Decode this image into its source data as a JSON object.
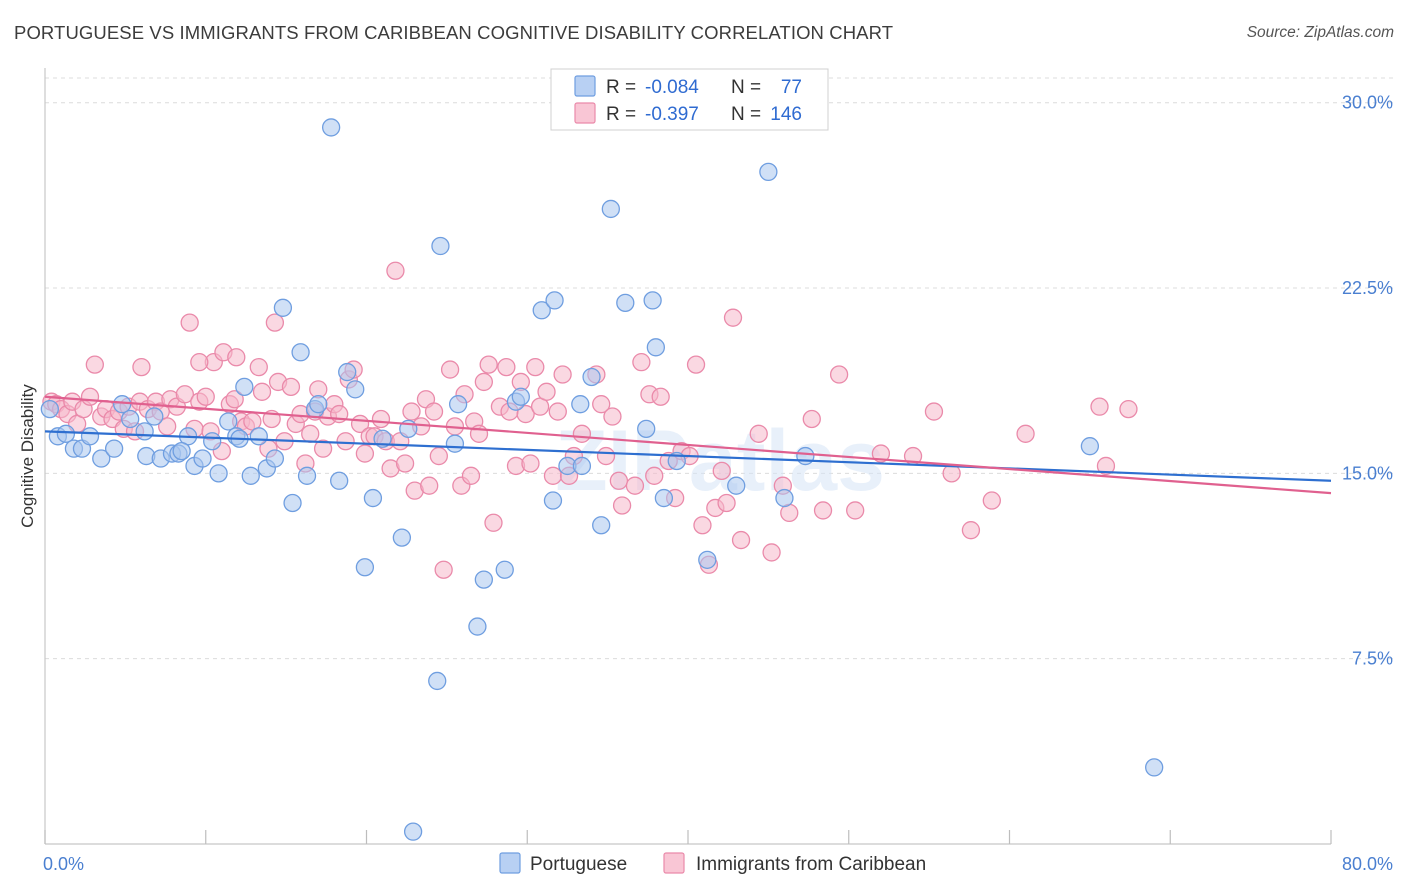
{
  "title": "PORTUGUESE VS IMMIGRANTS FROM CARIBBEAN COGNITIVE DISABILITY CORRELATION CHART",
  "source": "Source: ZipAtlas.com",
  "watermark": "ZIPatlas",
  "colors": {
    "blue_fill": "#a9c6ef",
    "blue_stroke": "#6f9ee0",
    "blue_line": "#2e6fd0",
    "pink_fill": "#f6b8cb",
    "pink_stroke": "#ea8aaa",
    "pink_line": "#e0608f",
    "grid": "#dcdcdc",
    "axis_text": "#4a7fd0"
  },
  "legend": {
    "r_label": "R =",
    "n_label": "N =",
    "rows": [
      {
        "color": "blue",
        "r": "-0.084",
        "n": "77"
      },
      {
        "color": "pink",
        "r": "-0.397",
        "n": "146"
      }
    ]
  },
  "chart_data": {
    "type": "scatter",
    "title": "PORTUGUESE VS IMMIGRANTS FROM CARIBBEAN COGNITIVE DISABILITY CORRELATION CHART",
    "xlabel": "",
    "ylabel": "Cognitive Disability",
    "xlim": [
      0,
      80
    ],
    "ylim": [
      0,
      31
    ],
    "x_tick_labels": [
      "0.0%",
      "80.0%"
    ],
    "y_ticks": [
      7.5,
      15.0,
      22.5,
      30.0
    ],
    "y_tick_labels": [
      "7.5%",
      "15.0%",
      "22.5%",
      "30.0%"
    ],
    "grid": true,
    "legend_position": "top-center",
    "series": [
      {
        "name": "Portuguese",
        "color": "blue",
        "trend": [
          [
            0,
            16.7
          ],
          [
            80,
            14.7
          ]
        ],
        "points": [
          [
            0.3,
            17.6
          ],
          [
            0.8,
            16.5
          ],
          [
            1.3,
            16.6
          ],
          [
            1.8,
            16.0
          ],
          [
            2.3,
            16.0
          ],
          [
            2.8,
            16.5
          ],
          [
            3.5,
            15.6
          ],
          [
            4.3,
            16.0
          ],
          [
            4.8,
            17.8
          ],
          [
            5.3,
            17.2
          ],
          [
            6.2,
            16.7
          ],
          [
            6.3,
            15.7
          ],
          [
            6.8,
            17.3
          ],
          [
            7.2,
            15.6
          ],
          [
            7.9,
            15.8
          ],
          [
            8.3,
            15.8
          ],
          [
            8.9,
            16.5
          ],
          [
            9.3,
            15.3
          ],
          [
            9.8,
            15.6
          ],
          [
            10.4,
            16.3
          ],
          [
            10.8,
            15.0
          ],
          [
            11.4,
            17.1
          ],
          [
            11.9,
            16.5
          ],
          [
            12.4,
            18.5
          ],
          [
            12.8,
            14.9
          ],
          [
            13.3,
            16.5
          ],
          [
            13.8,
            15.2
          ],
          [
            14.3,
            15.6
          ],
          [
            14.8,
            21.7
          ],
          [
            15.4,
            13.8
          ],
          [
            15.9,
            19.9
          ],
          [
            16.3,
            14.9
          ],
          [
            16.8,
            17.6
          ],
          [
            17.8,
            29.0
          ],
          [
            18.3,
            14.7
          ],
          [
            18.8,
            19.1
          ],
          [
            19.3,
            18.4
          ],
          [
            19.9,
            11.2
          ],
          [
            20.4,
            14.0
          ],
          [
            21.0,
            16.4
          ],
          [
            22.2,
            12.4
          ],
          [
            22.6,
            16.8
          ],
          [
            22.9,
            0.5
          ],
          [
            24.4,
            6.6
          ],
          [
            24.6,
            24.2
          ],
          [
            25.5,
            16.2
          ],
          [
            25.7,
            17.8
          ],
          [
            26.9,
            8.8
          ],
          [
            27.3,
            10.7
          ],
          [
            28.6,
            11.1
          ],
          [
            29.3,
            17.9
          ],
          [
            29.6,
            18.1
          ],
          [
            30.9,
            21.6
          ],
          [
            31.6,
            13.9
          ],
          [
            31.7,
            22.0
          ],
          [
            32.5,
            15.3
          ],
          [
            33.3,
            17.8
          ],
          [
            33.4,
            15.3
          ],
          [
            34.0,
            18.9
          ],
          [
            34.6,
            12.9
          ],
          [
            35.2,
            25.7
          ],
          [
            36.1,
            21.9
          ],
          [
            37.4,
            16.8
          ],
          [
            37.8,
            22.0
          ],
          [
            38.0,
            20.1
          ],
          [
            38.5,
            14.0
          ],
          [
            39.3,
            15.5
          ],
          [
            41.2,
            11.5
          ],
          [
            43.0,
            14.5
          ],
          [
            45.0,
            27.2
          ],
          [
            46.0,
            14.0
          ],
          [
            47.3,
            15.7
          ],
          [
            65.0,
            16.1
          ],
          [
            69.0,
            3.1
          ],
          [
            8.5,
            15.9
          ],
          [
            17.0,
            17.8
          ],
          [
            12.1,
            16.4
          ]
        ]
      },
      {
        "name": "Immigrants from Caribbean",
        "color": "pink",
        "trend": [
          [
            0,
            18.1
          ],
          [
            80,
            14.2
          ]
        ],
        "points": [
          [
            0.4,
            17.9
          ],
          [
            0.7,
            17.8
          ],
          [
            1.0,
            17.6
          ],
          [
            1.4,
            17.4
          ],
          [
            1.7,
            17.9
          ],
          [
            2.0,
            17.0
          ],
          [
            2.4,
            17.6
          ],
          [
            2.8,
            18.1
          ],
          [
            3.1,
            19.4
          ],
          [
            3.5,
            17.3
          ],
          [
            3.8,
            17.6
          ],
          [
            4.2,
            17.2
          ],
          [
            4.6,
            17.5
          ],
          [
            4.9,
            16.8
          ],
          [
            5.2,
            17.7
          ],
          [
            5.6,
            16.7
          ],
          [
            5.9,
            17.9
          ],
          [
            6.0,
            19.3
          ],
          [
            6.4,
            17.6
          ],
          [
            6.9,
            17.9
          ],
          [
            7.2,
            17.5
          ],
          [
            7.6,
            16.9
          ],
          [
            7.8,
            18.0
          ],
          [
            8.2,
            17.7
          ],
          [
            8.7,
            18.2
          ],
          [
            9.0,
            21.1
          ],
          [
            9.3,
            16.8
          ],
          [
            9.6,
            17.9
          ],
          [
            10.0,
            18.1
          ],
          [
            10.3,
            16.7
          ],
          [
            10.5,
            19.5
          ],
          [
            11.0,
            15.9
          ],
          [
            11.1,
            19.9
          ],
          [
            11.5,
            17.8
          ],
          [
            11.8,
            18.0
          ],
          [
            12.2,
            17.1
          ],
          [
            12.5,
            16.9
          ],
          [
            12.9,
            17.1
          ],
          [
            13.3,
            19.3
          ],
          [
            13.5,
            18.3
          ],
          [
            13.9,
            16.0
          ],
          [
            14.1,
            17.2
          ],
          [
            14.3,
            21.1
          ],
          [
            14.5,
            18.7
          ],
          [
            14.9,
            16.3
          ],
          [
            15.3,
            18.5
          ],
          [
            15.6,
            17.0
          ],
          [
            15.9,
            17.4
          ],
          [
            16.2,
            15.4
          ],
          [
            16.5,
            16.6
          ],
          [
            16.8,
            17.5
          ],
          [
            17.0,
            18.4
          ],
          [
            17.3,
            16.0
          ],
          [
            17.6,
            17.3
          ],
          [
            18.0,
            17.8
          ],
          [
            18.3,
            17.4
          ],
          [
            18.7,
            16.3
          ],
          [
            18.9,
            18.8
          ],
          [
            19.2,
            19.2
          ],
          [
            19.6,
            17.0
          ],
          [
            19.9,
            15.8
          ],
          [
            20.2,
            16.5
          ],
          [
            20.5,
            16.5
          ],
          [
            20.9,
            17.2
          ],
          [
            21.2,
            16.3
          ],
          [
            21.5,
            15.2
          ],
          [
            21.8,
            23.2
          ],
          [
            22.1,
            16.3
          ],
          [
            22.4,
            15.4
          ],
          [
            22.8,
            17.5
          ],
          [
            23.0,
            14.3
          ],
          [
            23.4,
            16.9
          ],
          [
            23.7,
            18.0
          ],
          [
            23.9,
            14.5
          ],
          [
            24.2,
            17.5
          ],
          [
            24.5,
            15.7
          ],
          [
            24.8,
            11.1
          ],
          [
            25.2,
            19.2
          ],
          [
            25.5,
            16.9
          ],
          [
            25.9,
            14.5
          ],
          [
            26.1,
            18.2
          ],
          [
            26.5,
            14.9
          ],
          [
            26.7,
            17.1
          ],
          [
            27.0,
            16.6
          ],
          [
            27.3,
            18.7
          ],
          [
            27.6,
            19.4
          ],
          [
            27.9,
            13.0
          ],
          [
            28.3,
            17.7
          ],
          [
            28.7,
            19.3
          ],
          [
            28.9,
            17.5
          ],
          [
            29.3,
            15.3
          ],
          [
            29.6,
            18.7
          ],
          [
            29.9,
            17.4
          ],
          [
            30.2,
            15.4
          ],
          [
            30.5,
            19.3
          ],
          [
            30.8,
            17.7
          ],
          [
            31.2,
            18.3
          ],
          [
            31.6,
            14.9
          ],
          [
            31.9,
            17.5
          ],
          [
            32.2,
            19.0
          ],
          [
            32.6,
            14.9
          ],
          [
            32.9,
            15.7
          ],
          [
            33.4,
            16.6
          ],
          [
            34.3,
            19.0
          ],
          [
            34.6,
            17.8
          ],
          [
            34.9,
            15.7
          ],
          [
            35.3,
            17.3
          ],
          [
            35.7,
            14.7
          ],
          [
            35.9,
            13.7
          ],
          [
            36.7,
            14.5
          ],
          [
            37.1,
            19.5
          ],
          [
            37.6,
            18.2
          ],
          [
            37.9,
            14.9
          ],
          [
            38.3,
            18.1
          ],
          [
            38.8,
            15.5
          ],
          [
            39.2,
            14.0
          ],
          [
            39.6,
            15.9
          ],
          [
            40.1,
            15.7
          ],
          [
            40.5,
            19.4
          ],
          [
            40.9,
            12.9
          ],
          [
            41.3,
            11.3
          ],
          [
            41.7,
            13.6
          ],
          [
            42.1,
            15.1
          ],
          [
            42.4,
            13.8
          ],
          [
            42.8,
            21.3
          ],
          [
            43.3,
            12.3
          ],
          [
            44.4,
            16.6
          ],
          [
            45.2,
            11.8
          ],
          [
            45.9,
            14.5
          ],
          [
            46.3,
            13.4
          ],
          [
            47.7,
            17.2
          ],
          [
            48.4,
            13.5
          ],
          [
            49.4,
            19.0
          ],
          [
            50.4,
            13.5
          ],
          [
            52.0,
            15.8
          ],
          [
            54.0,
            15.7
          ],
          [
            55.3,
            17.5
          ],
          [
            56.4,
            15.0
          ],
          [
            57.6,
            12.7
          ],
          [
            58.9,
            13.9
          ],
          [
            61.0,
            16.6
          ],
          [
            65.6,
            17.7
          ],
          [
            67.4,
            17.6
          ],
          [
            66.0,
            15.3
          ],
          [
            9.6,
            19.5
          ],
          [
            11.9,
            19.7
          ]
        ]
      }
    ]
  },
  "bottom_legend": [
    {
      "label": "Portuguese",
      "color": "blue"
    },
    {
      "label": "Immigrants from Caribbean",
      "color": "pink"
    }
  ]
}
